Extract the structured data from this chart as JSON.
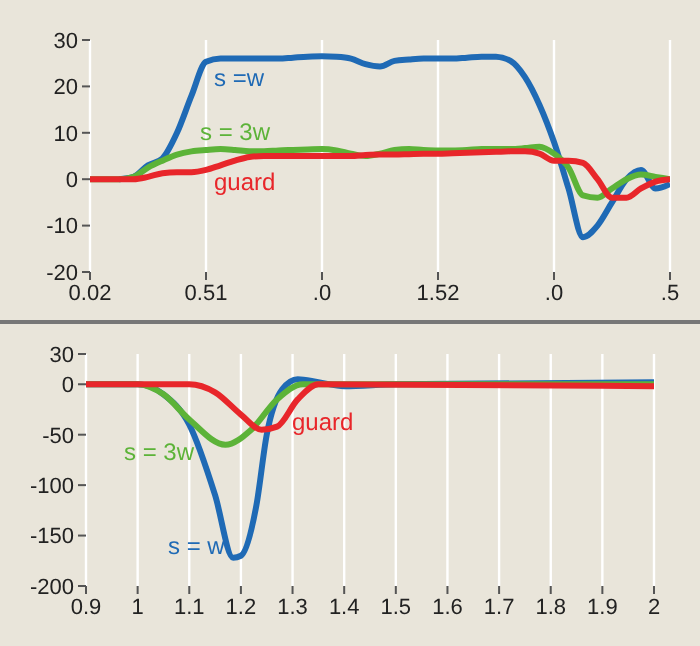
{
  "chart_data": [
    {
      "type": "line",
      "categories": [
        "0.02",
        null,
        null,
        null,
        null,
        null,
        null,
        null,
        "0.51",
        null,
        null,
        null,
        null,
        null,
        null,
        null,
        ".0",
        null,
        null,
        null,
        null,
        null,
        null,
        null,
        "1.52",
        null,
        null,
        null,
        null,
        null,
        null,
        null,
        ".0",
        null,
        null,
        null,
        null,
        null,
        null,
        null,
        ".5"
      ],
      "ylim": [
        -20,
        30
      ],
      "yticks": [
        -20,
        -10,
        0,
        10,
        20,
        30
      ],
      "grid": "x",
      "marker": "none",
      "line_style": "solid",
      "series": [
        {
          "name": "s =w",
          "color": "#1f6ab5",
          "values": [
            null,
            null,
            0,
            0.5,
            3,
            4.5,
            10,
            18,
            25.3,
            26,
            26,
            26,
            26,
            26,
            26.2,
            26.4,
            26.5,
            26.4,
            26,
            24.8,
            24.3,
            25.5,
            25.8,
            26,
            26,
            26,
            26.2,
            26.4,
            26.4,
            25.5,
            22,
            16,
            8,
            -2,
            -12.5,
            -10,
            -5,
            0,
            2,
            -2,
            -1
          ]
        },
        {
          "name": "s = 3w",
          "color": "#5cb338",
          "values": [
            0,
            0,
            0,
            0.5,
            2.5,
            4,
            5.3,
            6,
            6.3,
            6.5,
            6.3,
            6,
            6,
            6.2,
            6.3,
            6.4,
            6.5,
            6.2,
            5.5,
            5,
            5.5,
            6.3,
            6.5,
            6.3,
            6.2,
            6.2,
            6.3,
            6.5,
            6.5,
            6.5,
            6.7,
            7,
            5.5,
            2.5,
            -3.5,
            -4,
            -2,
            0,
            1,
            0.5,
            0
          ]
        },
        {
          "name": "guard",
          "color": "#e8262a",
          "values": [
            0,
            0,
            0,
            0,
            0.5,
            1.3,
            1.5,
            1.5,
            2,
            3,
            4,
            4.8,
            5,
            5,
            5,
            5,
            5,
            5,
            5,
            5.2,
            5.3,
            5.3,
            5.4,
            5.5,
            5.5,
            5.6,
            5.7,
            5.8,
            5.9,
            6,
            6,
            5.5,
            4,
            4,
            3.5,
            0,
            -4,
            -4,
            -2,
            -0.5,
            0
          ]
        }
      ]
    },
    {
      "type": "line",
      "xlim": [
        0.9,
        2.0
      ],
      "xticks": [
        0.9,
        1.0,
        1.1,
        1.2,
        1.3,
        1.4,
        1.5,
        1.6,
        1.7,
        1.8,
        1.9,
        2.0
      ],
      "ylim": [
        -200,
        30
      ],
      "yticks": [
        -200,
        -150,
        -100,
        -50,
        0,
        30
      ],
      "grid": "x",
      "marker": "none",
      "line_style": "solid",
      "series": [
        {
          "name": "s = w",
          "color": "#1f6ab5",
          "x": [
            0.9,
            1.0,
            1.05,
            1.1,
            1.15,
            1.185,
            1.2,
            1.23,
            1.25,
            1.28,
            1.31,
            1.35,
            1.4,
            1.5,
            2.0
          ],
          "values": [
            0,
            0,
            -10,
            -40,
            -110,
            -172,
            -170,
            -120,
            -50,
            -5,
            5,
            2,
            -2,
            0,
            2
          ]
        },
        {
          "name": "s = 3w",
          "color": "#5cb338",
          "x": [
            0.9,
            1.0,
            1.05,
            1.1,
            1.17,
            1.22,
            1.27,
            1.32,
            2.0
          ],
          "values": [
            0,
            0,
            -10,
            -35,
            -60,
            -45,
            -15,
            0,
            0
          ]
        },
        {
          "name": "guard",
          "color": "#e8262a",
          "x": [
            0.9,
            1.1,
            1.15,
            1.2,
            1.24,
            1.27,
            1.31,
            1.35,
            2.0
          ],
          "values": [
            0,
            0,
            -8,
            -30,
            -45,
            -42,
            -15,
            0,
            -2
          ]
        }
      ]
    }
  ]
}
